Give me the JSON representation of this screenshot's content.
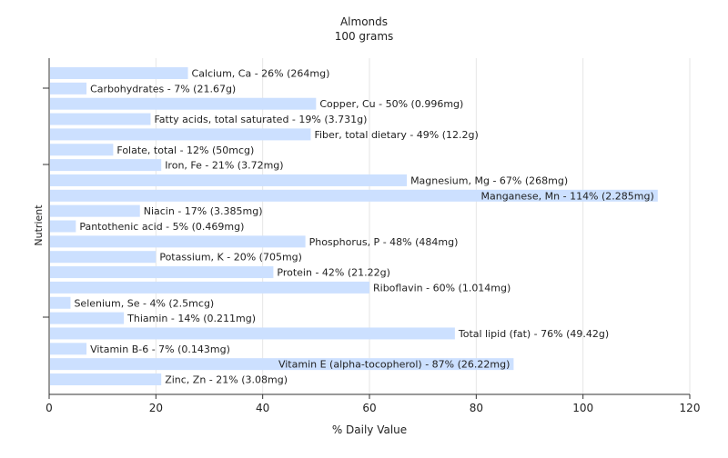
{
  "chart_data": {
    "type": "bar",
    "orientation": "horizontal",
    "title": "Almonds",
    "subtitle": "100 grams",
    "xlabel": "% Daily Value",
    "ylabel": "Nutrient",
    "xlim": [
      0,
      120
    ],
    "xticks": [
      0,
      20,
      40,
      60,
      80,
      100,
      120
    ],
    "grid": "vertical",
    "legend": "none",
    "bar_color": "#cce0ff",
    "categories": [
      "Calcium, Ca",
      "Carbohydrates",
      "Copper, Cu",
      "Fatty acids, total saturated",
      "Fiber, total dietary",
      "Folate, total",
      "Iron, Fe",
      "Magnesium, Mg",
      "Manganese, Mn",
      "Niacin",
      "Pantothenic acid",
      "Phosphorus, P",
      "Potassium, K",
      "Protein",
      "Riboflavin",
      "Selenium, Se",
      "Thiamin",
      "Total lipid (fat)",
      "Vitamin B-6",
      "Vitamin E (alpha-tocopherol)",
      "Zinc, Zn"
    ],
    "values": [
      26,
      7,
      50,
      19,
      49,
      12,
      21,
      67,
      114,
      17,
      5,
      48,
      20,
      42,
      60,
      4,
      14,
      76,
      7,
      87,
      21
    ],
    "labels": [
      "Calcium, Ca - 26% (264mg)",
      "Carbohydrates - 7% (21.67g)",
      "Copper, Cu - 50% (0.996mg)",
      "Fatty acids, total saturated - 19% (3.731g)",
      "Fiber, total dietary - 49% (12.2g)",
      "Folate, total - 12% (50mcg)",
      "Iron, Fe - 21% (3.72mg)",
      "Magnesium, Mg - 67% (268mg)",
      "Manganese, Mn - 114% (2.285mg)",
      "Niacin - 17% (3.385mg)",
      "Pantothenic acid - 5% (0.469mg)",
      "Phosphorus, P - 48% (484mg)",
      "Potassium, K - 20% (705mg)",
      "Protein - 42% (21.22g)",
      "Riboflavin - 60% (1.014mg)",
      "Selenium, Se - 4% (2.5mcg)",
      "Thiamin - 14% (0.211mg)",
      "Total lipid (fat) - 76% (49.42g)",
      "Vitamin B-6 - 7% (0.143mg)",
      "Vitamin E (alpha-tocopherol) - 87% (26.22mg)",
      "Zinc, Zn - 21% (3.08mg)"
    ]
  }
}
